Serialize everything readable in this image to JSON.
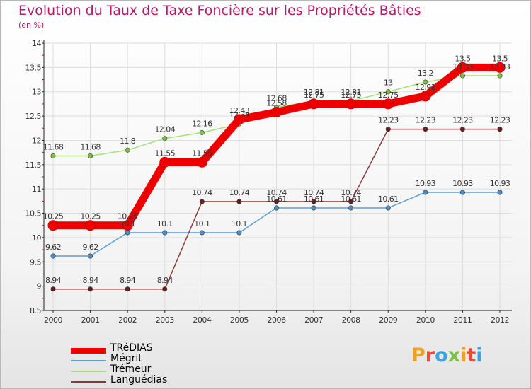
{
  "brand": "Proxiti",
  "chart_data": {
    "type": "line",
    "title": "Evolution du Taux de Taxe Foncière sur les Propriétés Bâties",
    "unit": "(en %)",
    "xlabel": "",
    "ylabel": "",
    "ylim": [
      8.5,
      14
    ],
    "yticks": [
      8.5,
      9,
      9.5,
      10,
      10.5,
      11,
      11.5,
      12,
      12.5,
      13,
      13.5,
      14
    ],
    "categories": [
      "2000",
      "2001",
      "2002",
      "2003",
      "2004",
      "2005",
      "2006",
      "2007",
      "2008",
      "2009",
      "2010",
      "2011",
      "2012"
    ],
    "series": [
      {
        "name": "TRéDIAS",
        "color": "#ee0000",
        "values": [
          10.25,
          10.25,
          10.25,
          11.55,
          11.55,
          12.43,
          12.58,
          12.75,
          12.75,
          12.75,
          12.91,
          13.5,
          13.5
        ]
      },
      {
        "name": "Mégrit",
        "color": "#5a9fd6",
        "marker": "#4a8fcc",
        "values": [
          9.62,
          9.62,
          10.1,
          10.1,
          10.1,
          10.1,
          10.61,
          10.61,
          10.61,
          10.61,
          10.93,
          10.93,
          10.93
        ]
      },
      {
        "name": "Trémeur",
        "color": "#a6e07a",
        "marker": "#7cc242",
        "values": [
          11.68,
          11.68,
          11.8,
          12.04,
          12.16,
          12.34,
          12.68,
          12.81,
          12.81,
          13,
          13.2,
          13.33,
          13.33
        ]
      },
      {
        "name": "Languédias",
        "color": "#8a3a3a",
        "marker": "#6a1f1f",
        "values": [
          8.94,
          8.94,
          8.94,
          8.94,
          10.74,
          10.74,
          10.74,
          10.74,
          10.74,
          12.23,
          12.23,
          12.23,
          12.23
        ]
      }
    ]
  }
}
